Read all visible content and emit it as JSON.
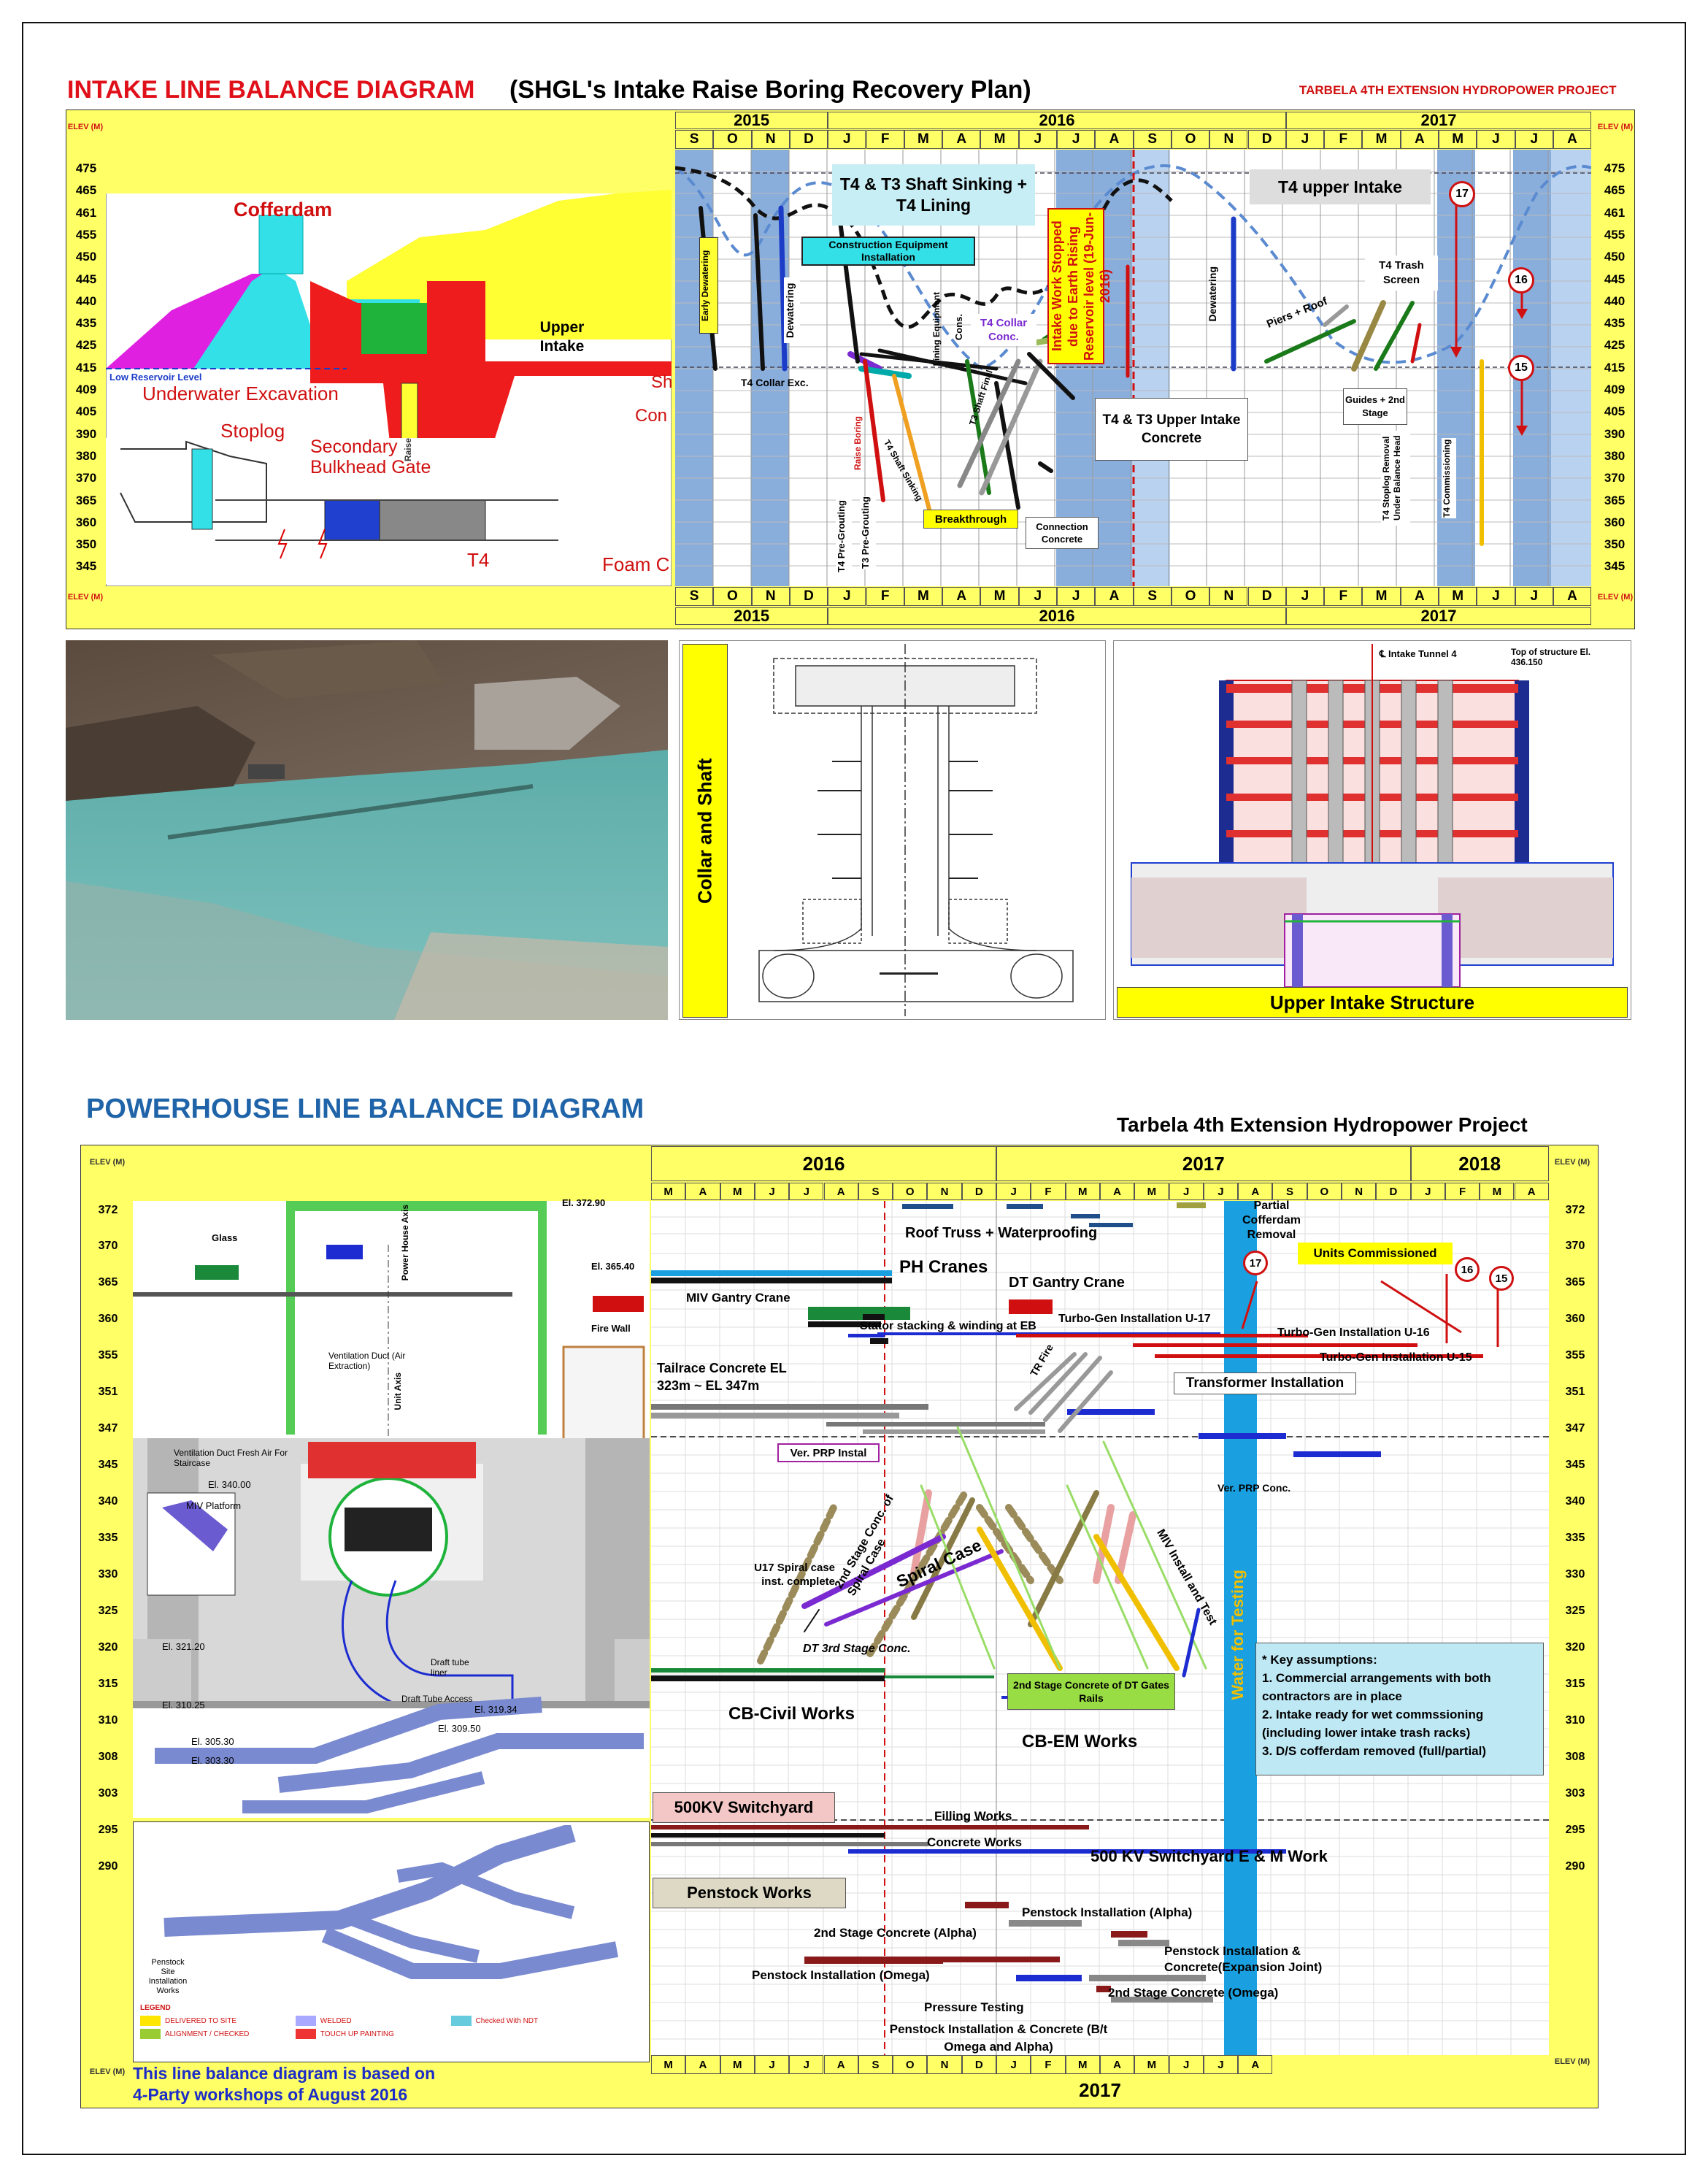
{
  "intake": {
    "title_red": "INTAKE LINE BALANCE DIAGRAM",
    "title_black": "(SHGL's Intake Raise Boring Recovery Plan)",
    "project": "TARBELA 4TH EXTENSION HYDROPOWER PROJECT",
    "elev_header": "ELEV (M)",
    "elevations": [
      "475",
      "465",
      "461",
      "455",
      "450",
      "445",
      "440",
      "435",
      "425",
      "415",
      "409",
      "405",
      "390",
      "380",
      "370",
      "365",
      "360",
      "350",
      "345"
    ],
    "years": [
      "2015",
      "2016",
      "2017"
    ],
    "months": [
      "S",
      "O",
      "N",
      "D",
      "J",
      "F",
      "M",
      "A",
      "M",
      "J",
      "J",
      "A",
      "S",
      "O",
      "N",
      "D",
      "J",
      "F",
      "M",
      "A",
      "M",
      "J",
      "J",
      "A"
    ],
    "section_labels": {
      "cofferdam": "Cofferdam",
      "upper_intake": "Upper Intake",
      "low_reservoir": "Low Reservoir Level",
      "underwater_excavation": "Underwater Excavation",
      "stoplog": "Stoplog",
      "secondary_bulkhead": "Secondary Bulkhead Gate",
      "t4": "T4",
      "foam": "Foam C",
      "sh": "Sh",
      "con": "Con",
      "raise": "Raise"
    },
    "activities": {
      "shaft_sinking": "T4 & T3 Shaft Sinking + T4 Lining",
      "upper_intake_t4": "T4 upper Intake",
      "construction_equipment": "Construction Equipment Installation",
      "early_dewatering": "Early Dewatering",
      "dewatering": "Dewatering",
      "t4_collar_exc": "T4 Collar Exc.",
      "lining_equipment": "Lining Equipment",
      "cons": "Cons.",
      "t4_collar_conc": "T4 Collar Conc.",
      "intake_stopped": "Intake Work Stopped due to Earth Rising Reservoir level (19-Jun-2016)",
      "dewatering2": "Dewatering",
      "piers_roof": "Piers + Roof",
      "t4_trash_screen": "T4 Trash Screen",
      "guides_2nd_stage": "Guides + 2nd Stage",
      "t4_t3_upper_intake_concrete": "T4 & T3 Upper Intake Concrete",
      "raise_boring": "Raise Boring",
      "t4_shaft_sinking": "T4 Shaft Sinking",
      "t3_shaft_final": "T3 Shaft Final",
      "t4_pre_grouting": "T4 Pre-Grouting",
      "t3_pre_grouting": "T3 Pre-Grouting",
      "breakthrough": "Breakthrough",
      "connection_concrete": "Connection Concrete",
      "t4_stoplog_removal": "T4 Stoplog Removal Under Balance Head",
      "t4_commissioning": "T4 Commissioning"
    },
    "markers": [
      "17",
      "16",
      "15"
    ]
  },
  "collar_shaft": {
    "title": "Collar and Shaft"
  },
  "upper_intake_structure": {
    "title": "Upper Intake Structure",
    "intake_tunnel": "℄ Intake Tunnel 4",
    "top_of_structure": "Top of structure El. 436.150"
  },
  "powerhouse": {
    "title": "POWERHOUSE LINE BALANCE DIAGRAM",
    "project": "Tarbela 4th Extension Hydropower Project",
    "elev_header": "ELEV (M)",
    "elevations": [
      "372",
      "370",
      "365",
      "360",
      "355",
      "351",
      "347",
      "345",
      "340",
      "335",
      "330",
      "325",
      "320",
      "315",
      "310",
      "308",
      "303",
      "295",
      "290"
    ],
    "years": [
      "2016",
      "2017",
      "2018"
    ],
    "months": [
      "M",
      "A",
      "M",
      "J",
      "J",
      "A",
      "S",
      "O",
      "N",
      "D",
      "J",
      "F",
      "M",
      "A",
      "M",
      "J",
      "J",
      "A",
      "S",
      "O",
      "N",
      "D",
      "J",
      "F",
      "M",
      "A"
    ],
    "bottom_months": [
      "M",
      "A",
      "M",
      "J",
      "J",
      "A",
      "S",
      "O",
      "N",
      "D",
      "J",
      "F",
      "M",
      "A",
      "M",
      "J",
      "J",
      "A"
    ],
    "bottom_year": "2017",
    "section_labels": {
      "glass": "Glass",
      "powerhouse_axis": "Power House Axis",
      "el_372": "El. 372.90",
      "el_365": "El. 365.40",
      "ventilation": "Ventilation Duct (Air Extraction)",
      "unit_axis": "Unit Axis",
      "fire_wall": "Fire Wall",
      "vent_stair": "Ventilation Duct Fresh Air For Staircase",
      "miv_platform": "MIV Platform",
      "el_340": "El. 340.00",
      "el_321": "El. 321.20",
      "draft_tube_liner": "Draft tube liner",
      "draft_tube_access": "Draft Tube Access",
      "el_305": "El. 305.30",
      "el_303": "El. 303.30",
      "el_310": "El. 310.25",
      "el_319": "El. 319.34",
      "el_309": "El. 309.50",
      "penstock_site": "Penstock Site Installation Works",
      "legend_title": "LEGEND",
      "legend_items": [
        "DELIVERED TO SITE",
        "WELDED",
        "Checked With NDT",
        "ALIGNMENT / CHECKED",
        "TOUCH UP PAINTING"
      ],
      "legend_colors": [
        "#ffe600",
        "#a9a9ff",
        "#66ccdd",
        "#99cc33",
        "#ee3333"
      ],
      "basis_note": "This line balance diagram is based on 4-Party workshops of August 2016"
    },
    "activities": {
      "roof_truss": "Roof Truss + Waterproofing",
      "partial_cofferdam": "Partial Cofferdam Removal",
      "ph_cranes": "PH Cranes",
      "dt_gantry": "DT Gantry Crane",
      "units_commissioned": "Units Commissioned",
      "miv_gantry": "MIV Gantry Crane",
      "stator_stacking": "Stator stacking & winding at EB",
      "turbo_u17": "Turbo-Gen Installation U-17",
      "turbo_u16": "Turbo-Gen Installation U-16",
      "turbo_u15": "Turbo-Gen Installation U-15",
      "tailrace": "Tailrace Concrete EL 323m ~ EL 347m",
      "tr_fire": "TR Fire",
      "transformer": "Transformer Installation",
      "ver_prp_instal": "Ver. PRP Instal",
      "ver_prp_conc": "Ver. PRP Conc.",
      "second_stage_spiral": "2nd Stage Conc. of Spiral Case",
      "miv_install": "MIV Install and Test",
      "spiral_case": "Spiral Case",
      "u17_spiral": "U17 Spiral case inst. complete",
      "dt_3rd_stage": "DT 3rd Stage Conc.",
      "water_testing": "Water for Testing",
      "key_assumptions": "* Key assumptions:",
      "assumption_1": "1. Commercial arrangements with both contractors are in place",
      "assumption_2": "2. Intake ready for wet commssioning (including lower intake trash racks)",
      "assumption_3": "3. D/S cofferdam removed (full/partial)",
      "dt_gates_rails": "2nd Stage Concrete of DT Gates Rails",
      "cb_civil": "CB-Civil Works",
      "cb_em": "CB-EM Works",
      "switchyard_500kv": "500KV Switchyard",
      "filling_works": "Filling Works",
      "concrete_works": "Concrete Works",
      "switchyard_em": "500 KV Switchyard E & M Work",
      "penstock_works": "Penstock Works",
      "penstock_alpha": "Penstock Installation (Alpha)",
      "second_stage_alpha": "2nd Stage Concrete (Alpha)",
      "penstock_expansion": "Penstock Installation & Concrete(Expansion Joint)",
      "penstock_omega": "Penstock Installation (Omega)",
      "second_stage_omega": "2nd Stage Concrete (Omega)",
      "pressure_testing": "Pressure Testing",
      "penstock_bt": "Penstock Installation & Concrete (B/t Omega and Alpha)"
    },
    "markers": [
      "17",
      "16",
      "15"
    ]
  }
}
